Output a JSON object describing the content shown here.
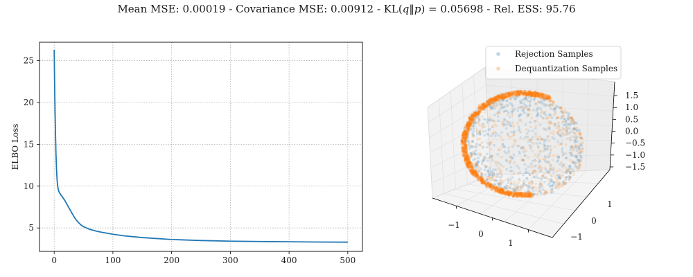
{
  "figure": {
    "title": {
      "mean_mse": "Mean MSE: 0.00019",
      "cov_mse": "Covariance MSE: 0.00912",
      "kl_prefix": "KL(",
      "kl_q": "q",
      "kl_sep": "‖",
      "kl_p": "p",
      "kl_suffix": ") = 0.05698",
      "ess": "Rel. ESS: 95.76",
      "separator": " - "
    }
  },
  "chart_data": [
    {
      "type": "line",
      "title": "",
      "xlabel": "",
      "ylabel": "ELBO Loss",
      "xlim": [
        -25,
        525
      ],
      "ylim": [
        2.2,
        27.2
      ],
      "xticks": [
        0,
        100,
        200,
        300,
        400,
        500
      ],
      "yticks": [
        5,
        10,
        15,
        20,
        25
      ],
      "grid": true,
      "series": [
        {
          "color": "#1f77b4",
          "x": [
            0,
            1,
            2,
            3,
            4,
            5,
            6,
            7,
            8,
            10,
            12,
            15,
            18,
            22,
            26,
            30,
            35,
            40,
            45,
            50,
            60,
            70,
            80,
            100,
            120,
            150,
            200,
            250,
            300,
            350,
            400,
            450,
            500
          ],
          "y": [
            26.3,
            21.0,
            17.0,
            14.0,
            12.0,
            10.7,
            10.0,
            9.6,
            9.35,
            9.1,
            8.9,
            8.6,
            8.3,
            7.8,
            7.3,
            6.8,
            6.2,
            5.75,
            5.4,
            5.15,
            4.85,
            4.65,
            4.5,
            4.25,
            4.05,
            3.85,
            3.62,
            3.5,
            3.42,
            3.38,
            3.35,
            3.32,
            3.3
          ]
        }
      ]
    },
    {
      "type": "scatter",
      "projection": "3d",
      "title": "",
      "x_ticks": [
        -1,
        0,
        1
      ],
      "y_ticks": [
        -1,
        0,
        1
      ],
      "z_ticks": [
        -1.5,
        -1.0,
        -0.5,
        0.0,
        0.5,
        1.0,
        1.5
      ],
      "z_tick_labels": [
        "−1.5",
        "−1.0",
        "−0.5",
        "0.0",
        "0.5",
        "1.0",
        "1.5"
      ],
      "tick_minus": "−",
      "legend_position": "upper-right",
      "series": [
        {
          "name": "Rejection Samples",
          "color": "#1f77b4",
          "alpha": 0.15,
          "points": 700
        },
        {
          "name": "Dequantization Samples",
          "color": "#ff7f0e",
          "alpha": 0.15,
          "points": 1400
        }
      ]
    }
  ]
}
